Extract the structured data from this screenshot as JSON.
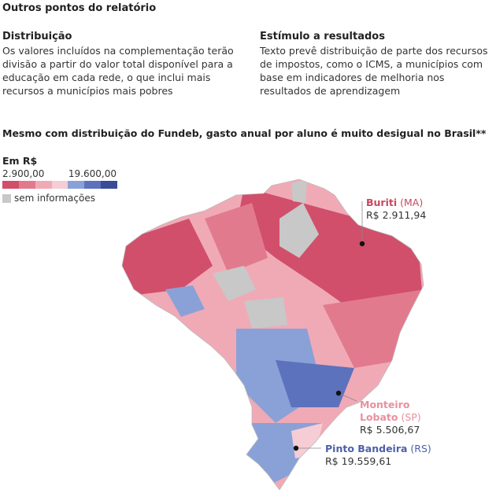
{
  "header": {
    "title": "Outros pontos do relatório"
  },
  "columns": [
    {
      "heading": "Distribuição",
      "text": "Os valores incluídos na complementação terão divisão a partir do valor total disponível para a educação em cada rede, o que inclui mais recursos a municípios mais pobres"
    },
    {
      "heading": "Estímulo a resultados",
      "text": "Texto prevê distribuição de parte dos recursos de impostos, como o ICMS, a municípios com base em indicadores de melhoria nos resultados de aprendizagem"
    }
  ],
  "map": {
    "title": "Mesmo com distribuição do Fundeb, gasto anual por aluno é muito desigual no Brasil**",
    "legend": {
      "title": "Em R$",
      "min_label": "2.900,00",
      "max_label": "19.600,00",
      "colors": [
        "#d14f6b",
        "#e27a8e",
        "#f0aab6",
        "#f6cdd4",
        "#8aa1d8",
        "#5c72bd",
        "#3a4c97"
      ],
      "na_label": "sem informações",
      "na_color": "#c8c8c8"
    },
    "callouts": [
      {
        "name": "Buriti",
        "state": "(MA)",
        "value": "R$ 2.911,94",
        "color": "#c9475f"
      },
      {
        "name_line1": "Monteiro",
        "name_line2": "Lobato",
        "state": "(SP)",
        "value": "R$ 5.506,67",
        "color": "#e8909f"
      },
      {
        "name": "Pinto Bandeira",
        "state": "(RS)",
        "value": "R$ 19.559,61",
        "color": "#4d60aa"
      }
    ]
  }
}
